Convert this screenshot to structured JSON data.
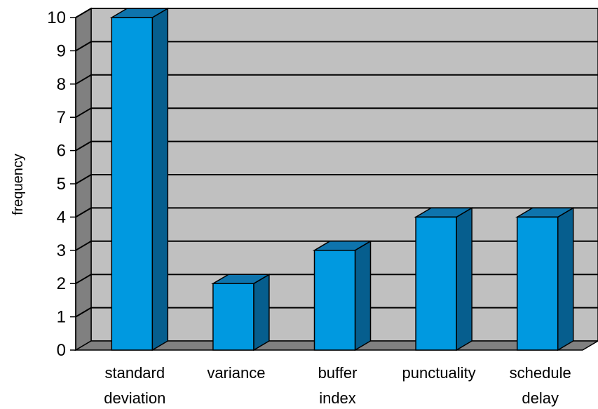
{
  "chart_data": {
    "type": "bar",
    "categories": [
      [
        "standard",
        "deviation"
      ],
      [
        "variance"
      ],
      [
        "buffer",
        "index"
      ],
      [
        "punctuality"
      ],
      [
        "schedule",
        "delay"
      ]
    ],
    "values": [
      10,
      2,
      3,
      4,
      4
    ],
    "ylabel": "frequency",
    "xlabel": "",
    "title": "",
    "ylim": [
      0,
      10
    ],
    "yticks": [
      "0",
      "1",
      "2",
      "3",
      "4",
      "5",
      "6",
      "7",
      "8",
      "9",
      "10"
    ],
    "grid": true,
    "style": "3d",
    "colors": {
      "bar_front": "#0099e0",
      "bar_top": "#0e74ad",
      "bar_side": "#065e8e",
      "wall": "#c0c0c0",
      "side_wall": "#808080",
      "floor": "#808080",
      "gridline": "#000000"
    }
  }
}
